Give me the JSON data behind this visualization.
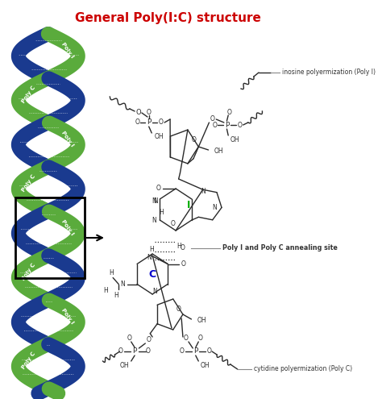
{
  "title": "General Poly(I:C) structure",
  "title_color": "#cc0000",
  "title_fontsize": 11,
  "bg_color": "#ffffff",
  "helix_green_color": "#5aab3c",
  "helix_blue_color": "#1a3a8f",
  "annotation_label_1": "inosine polyermization (Poly I)",
  "annotation_label_2": "Poly I and Poly C annealing site",
  "annotation_label_3": "cytidine polyermization (Poly C)",
  "label_I_color": "#00aa00",
  "label_C_color": "#0000cc",
  "line_color": "#2a2a2a",
  "ann_line_color": "#888888",
  "ann_text_color": "#333333",
  "figsize": [
    4.74,
    4.95
  ],
  "dpi": 100
}
